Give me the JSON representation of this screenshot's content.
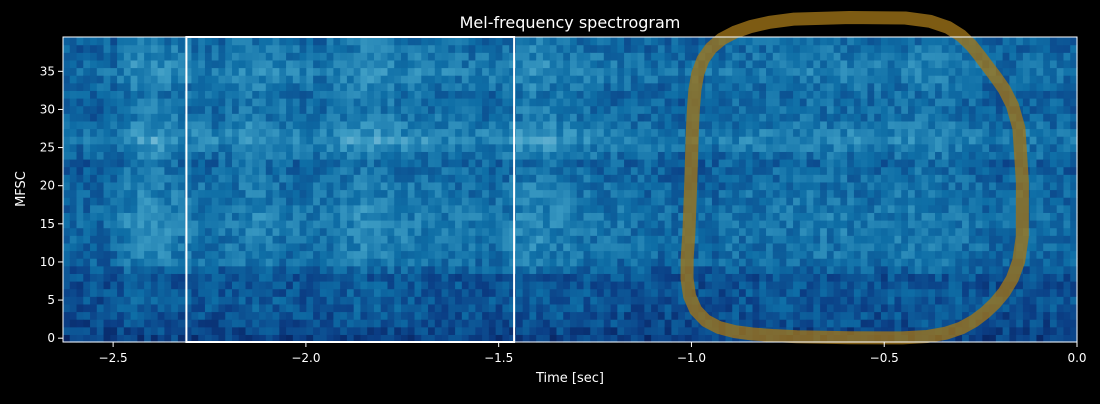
{
  "chart_data": {
    "type": "heatmap",
    "title": "Mel-frequency spectrogram",
    "xlabel": "Time [sec]",
    "ylabel": "MFSC",
    "xlim": [
      -2.63,
      0.0
    ],
    "ylim": [
      -0.5,
      39.5
    ],
    "n_bins": 40,
    "x_ticks": [
      {
        "value": -2.5,
        "label": "−2.5"
      },
      {
        "value": -2.0,
        "label": "−2.0"
      },
      {
        "value": -1.5,
        "label": "−1.5"
      },
      {
        "value": -1.0,
        "label": "−1.0"
      },
      {
        "value": -0.5,
        "label": "−0.5"
      },
      {
        "value": 0.0,
        "label": "0.0"
      }
    ],
    "y_ticks": [
      {
        "value": 0,
        "label": "0"
      },
      {
        "value": 5,
        "label": "5"
      },
      {
        "value": 10,
        "label": "10"
      },
      {
        "value": 15,
        "label": "15"
      },
      {
        "value": 20,
        "label": "20"
      },
      {
        "value": 25,
        "label": "25"
      },
      {
        "value": 30,
        "label": "30"
      },
      {
        "value": 35,
        "label": "35"
      }
    ],
    "colormap": [
      "#06124a",
      "#0b3f86",
      "#0e6ea6",
      "#3c9cc4",
      "#8cc8df",
      "#e6f5fa"
    ],
    "highlight_windows": [
      {
        "x_start": -2.31,
        "x_end": -1.46,
        "y_start": -0.5,
        "y_end": 39.5
      }
    ],
    "annotation": {
      "shape": "hand-drawn loop",
      "x_range": [
        -1.02,
        -0.16
      ],
      "y_range": [
        -0.5,
        41.5
      ],
      "color": "#a07418"
    },
    "energy_envelope": [
      {
        "t": -2.63,
        "v": 0.25
      },
      {
        "t": -2.5,
        "v": 0.35
      },
      {
        "t": -2.46,
        "v": 0.85
      },
      {
        "t": -2.4,
        "v": 1.0
      },
      {
        "t": -2.32,
        "v": 0.7
      },
      {
        "t": -2.22,
        "v": 0.55
      },
      {
        "t": -2.13,
        "v": 0.9
      },
      {
        "t": -2.05,
        "v": 0.6
      },
      {
        "t": -1.95,
        "v": 0.55
      },
      {
        "t": -1.85,
        "v": 1.0
      },
      {
        "t": -1.75,
        "v": 0.75
      },
      {
        "t": -1.6,
        "v": 0.6
      },
      {
        "t": -1.5,
        "v": 0.55
      },
      {
        "t": -1.42,
        "v": 0.95
      },
      {
        "t": -1.3,
        "v": 0.7
      },
      {
        "t": -1.15,
        "v": 0.45
      },
      {
        "t": -1.0,
        "v": 0.3
      },
      {
        "t": -0.85,
        "v": 0.55
      },
      {
        "t": -0.7,
        "v": 0.6
      },
      {
        "t": -0.6,
        "v": 0.65
      },
      {
        "t": -0.5,
        "v": 0.55
      },
      {
        "t": -0.4,
        "v": 0.75
      },
      {
        "t": -0.3,
        "v": 0.55
      },
      {
        "t": -0.2,
        "v": 0.3
      },
      {
        "t": -0.1,
        "v": 0.45
      },
      {
        "t": 0.0,
        "v": 0.25
      }
    ],
    "band_profile": [
      {
        "bin": 0,
        "v": 0.05
      },
      {
        "bin": 2,
        "v": 0.2
      },
      {
        "bin": 5,
        "v": 0.3
      },
      {
        "bin": 8,
        "v": 0.25
      },
      {
        "bin": 10,
        "v": 0.55
      },
      {
        "bin": 12,
        "v": 0.6
      },
      {
        "bin": 15,
        "v": 0.65
      },
      {
        "bin": 18,
        "v": 0.6
      },
      {
        "bin": 20,
        "v": 0.55
      },
      {
        "bin": 23,
        "v": 0.45
      },
      {
        "bin": 26,
        "v": 0.8
      },
      {
        "bin": 29,
        "v": 0.55
      },
      {
        "bin": 32,
        "v": 0.5
      },
      {
        "bin": 35,
        "v": 0.7
      },
      {
        "bin": 39,
        "v": 0.5
      }
    ]
  }
}
